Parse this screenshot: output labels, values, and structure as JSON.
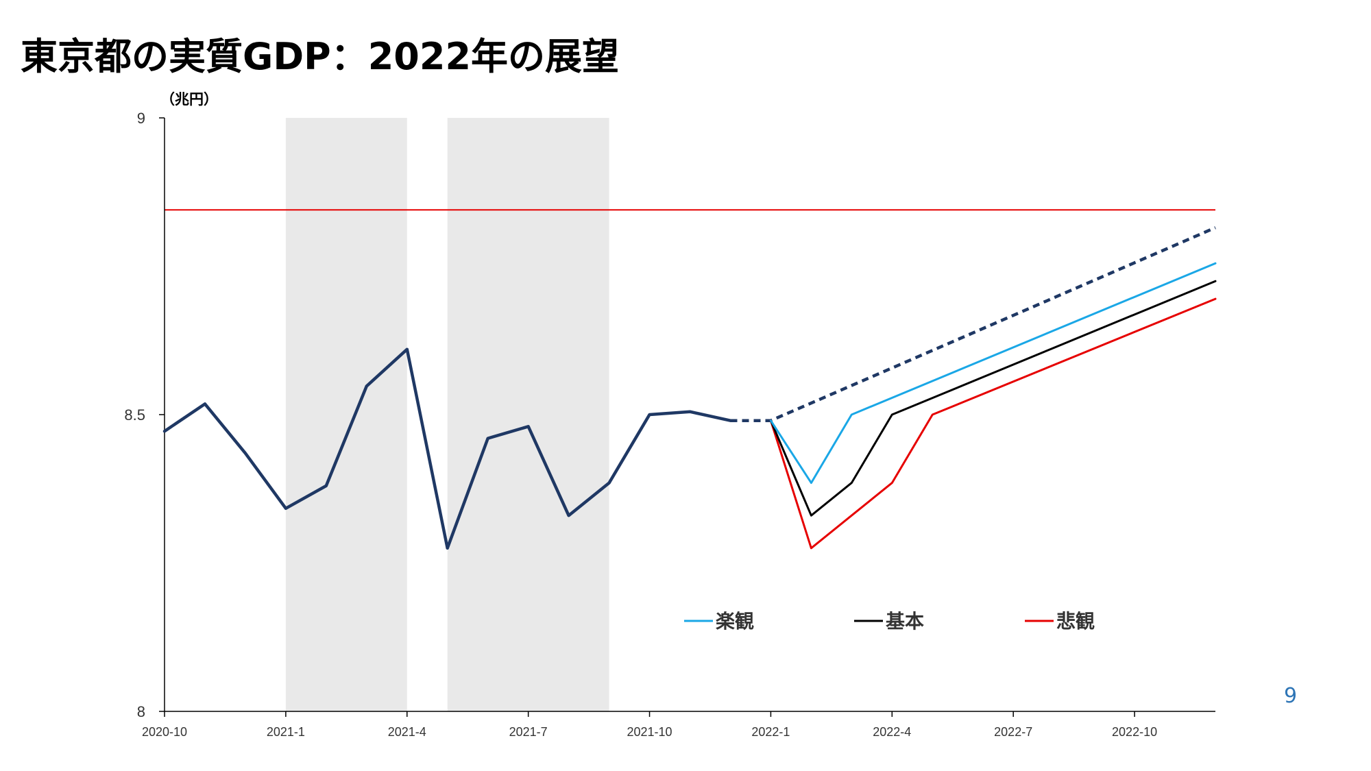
{
  "title": "東京都の実質GDP：2022年の展望",
  "page_number": "9",
  "colors": {
    "actual": "#1f3864",
    "optimistic": "#1aa7e6",
    "base": "#000000",
    "pessimistic": "#e60000",
    "reference_line": "#e60000",
    "shade": "#e9e9e9"
  },
  "chart_data": {
    "type": "line",
    "unit_label": "（兆円）",
    "x_start": "2020-10",
    "x_end": "2022-12",
    "ylim": [
      8,
      9
    ],
    "yticks": [
      "8",
      "8.5",
      "9"
    ],
    "xticks": [
      "2020-10",
      "2021-1",
      "2021-4",
      "2021-7",
      "2021-10",
      "2022-1",
      "2022-4",
      "2022-7",
      "2022-10"
    ],
    "shaded_periods": [
      [
        "2021-1",
        "2021-4"
      ],
      [
        "2021-5",
        "2021-9"
      ]
    ],
    "reference_line": {
      "y": 8.845
    },
    "series": [
      {
        "key": "actual",
        "dashed": false,
        "x": [
          "2020-10",
          "2020-11",
          "2020-12",
          "2021-1",
          "2021-2",
          "2021-3",
          "2021-4",
          "2021-5",
          "2021-6",
          "2021-7",
          "2021-8",
          "2021-9",
          "2021-10",
          "2021-11",
          "2021-12"
        ],
        "y": [
          8.472,
          8.518,
          8.435,
          8.342,
          8.38,
          8.548,
          8.61,
          8.275,
          8.46,
          8.48,
          8.33,
          8.385,
          8.5,
          8.505,
          8.49
        ]
      },
      {
        "key": "pre_covid_trend",
        "dashed": true,
        "x": [
          "2021-12",
          "2022-1",
          "2022-12"
        ],
        "y": [
          8.49,
          8.49,
          8.815
        ]
      },
      {
        "key": "optimistic",
        "name": "楽観",
        "dashed": false,
        "x": [
          "2022-1",
          "2022-2",
          "2022-3",
          "2022-12"
        ],
        "y": [
          8.49,
          8.385,
          8.5,
          8.755
        ]
      },
      {
        "key": "base",
        "name": "基本",
        "dashed": false,
        "x": [
          "2022-1",
          "2022-2",
          "2022-3",
          "2022-4",
          "2022-12"
        ],
        "y": [
          8.49,
          8.33,
          8.385,
          8.5,
          8.725
        ]
      },
      {
        "key": "pessimistic",
        "name": "悲観",
        "dashed": false,
        "x": [
          "2022-1",
          "2022-2",
          "2022-3",
          "2022-4",
          "2022-5",
          "2022-12"
        ],
        "y": [
          8.49,
          8.275,
          8.33,
          8.385,
          8.5,
          8.695
        ]
      }
    ],
    "legend": [
      "楽観",
      "基本",
      "悲観"
    ]
  }
}
